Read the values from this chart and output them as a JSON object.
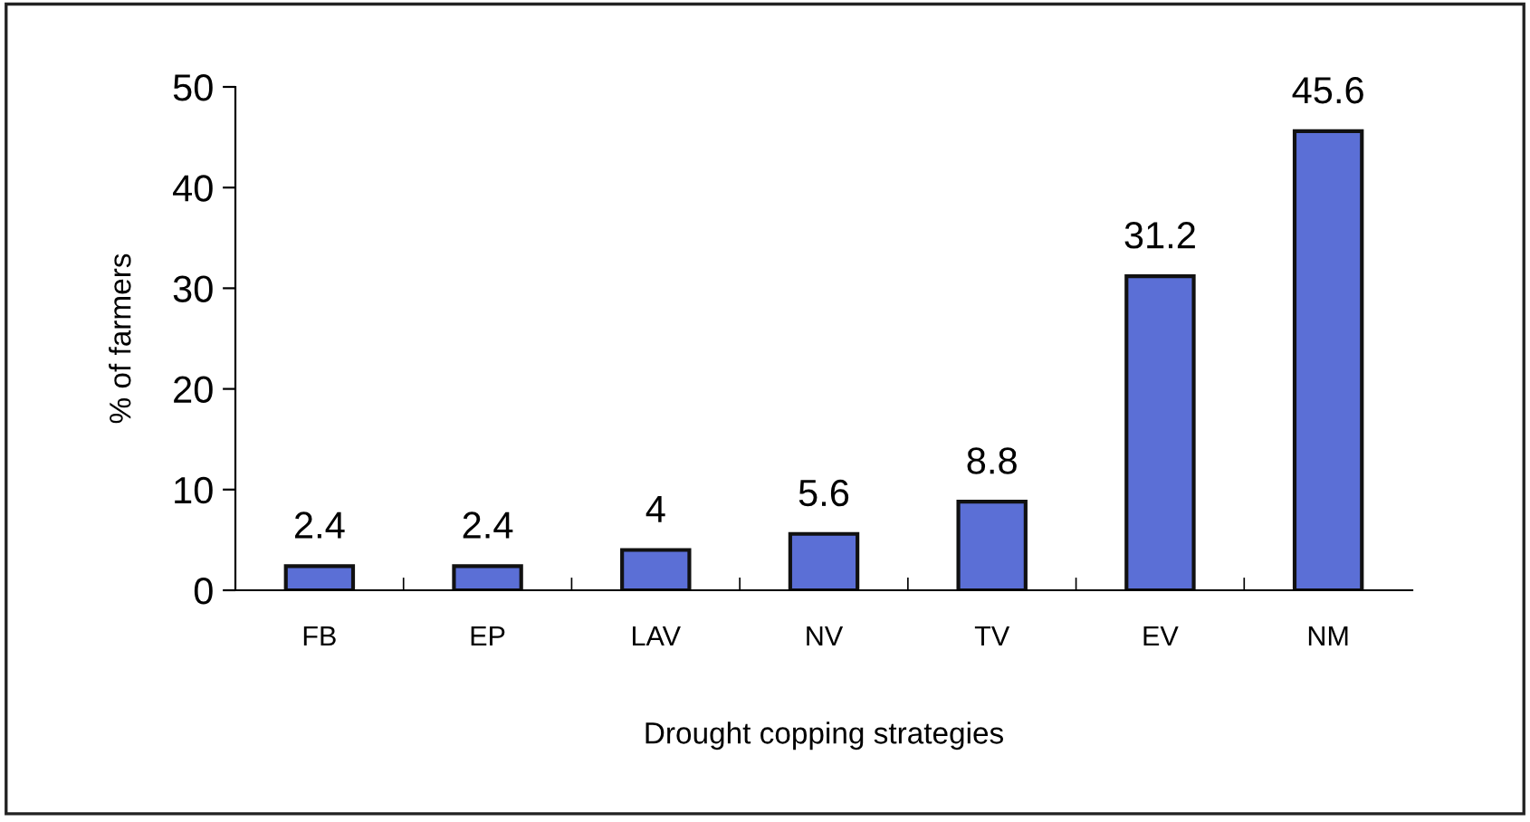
{
  "chart_data": {
    "type": "bar",
    "categories": [
      "FB",
      "EP",
      "LAV",
      "NV",
      "TV",
      "EV",
      "NM"
    ],
    "values": [
      2.4,
      2.4,
      4,
      5.6,
      8.8,
      31.2,
      45.6
    ],
    "color": "#5b6fd6",
    "xlabel": "Drought copping strategies",
    "ylabel": "% of farmers",
    "ylim": [
      0,
      50
    ],
    "yticks": [
      0,
      10,
      20,
      30,
      40,
      50
    ],
    "data_labels": true,
    "grid": false,
    "legend": false
  }
}
